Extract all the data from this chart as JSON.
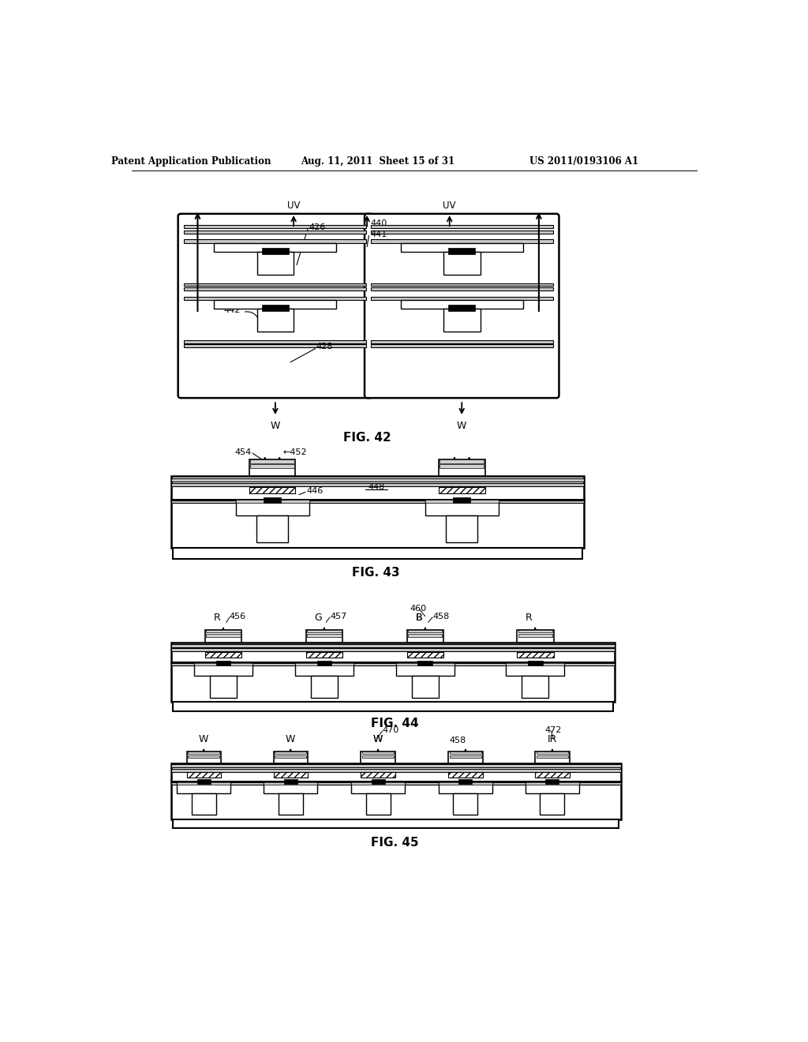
{
  "background_color": "#ffffff",
  "header_left": "Patent Application Publication",
  "header_mid": "Aug. 11, 2011  Sheet 15 of 31",
  "header_right": "US 2011/0193106 A1",
  "fig42_caption": "FIG. 42",
  "fig43_caption": "FIG. 43",
  "fig44_caption": "FIG. 44",
  "fig45_caption": "FIG. 45"
}
